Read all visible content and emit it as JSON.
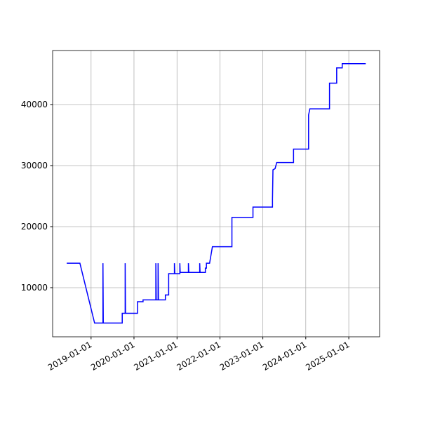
{
  "chart_data": {
    "type": "line",
    "x": [
      "2018-06-08",
      "2018-09-28",
      "2019-01-31",
      "2019-04-12",
      "2019-04-12",
      "2019-04-15",
      "2019-09-23",
      "2019-09-23",
      "2019-10-18",
      "2019-10-18",
      "2019-10-21",
      "2020-01-31",
      "2020-01-31",
      "2020-03-18",
      "2020-03-18",
      "2020-07-05",
      "2020-07-05",
      "2020-07-08",
      "2020-07-24",
      "2020-07-24",
      "2020-07-27",
      "2020-09-24",
      "2020-09-24",
      "2020-10-22",
      "2020-10-22",
      "2020-12-10",
      "2020-12-10",
      "2020-12-13",
      "2021-01-25",
      "2021-01-25",
      "2021-01-28",
      "2021-04-08",
      "2021-04-08",
      "2021-04-11",
      "2021-07-13",
      "2021-07-13",
      "2021-07-16",
      "2021-08-30",
      "2021-08-30",
      "2021-09-08",
      "2021-09-08",
      "2021-10-05",
      "2021-10-29",
      "2022-04-13",
      "2022-04-13",
      "2022-10-09",
      "2022-10-09",
      "2023-03-24",
      "2023-03-24",
      "2023-03-28",
      "2023-04-15",
      "2023-04-29",
      "2023-09-19",
      "2023-09-19",
      "2024-01-25",
      "2024-01-25",
      "2024-02-05",
      "2024-07-21",
      "2024-07-21",
      "2024-09-20",
      "2024-09-20",
      "2024-11-06",
      "2024-11-06",
      "2025-05-25"
    ],
    "series": [
      {
        "color": "#0000ff",
        "values": [
          14000,
          14000,
          4200,
          4200,
          14000,
          4200,
          4200,
          5800,
          5800,
          14000,
          5800,
          5800,
          7700,
          7700,
          8000,
          8000,
          14000,
          8000,
          8000,
          14000,
          8000,
          8000,
          8800,
          8800,
          12300,
          12300,
          14000,
          12300,
          12300,
          14000,
          12500,
          12500,
          14000,
          12500,
          12500,
          14000,
          12500,
          12500,
          13200,
          13200,
          14000,
          14000,
          16700,
          16700,
          21500,
          21500,
          23200,
          23200,
          24500,
          29300,
          29500,
          30500,
          30500,
          32700,
          32700,
          38300,
          39300,
          39300,
          43500,
          43500,
          46000,
          46000,
          46700,
          46700
        ]
      }
    ],
    "xlim": [
      "2018-02-08",
      "2025-09-20"
    ],
    "xticks": [
      "2019-01-01",
      "2020-01-01",
      "2021-01-01",
      "2022-01-01",
      "2023-01-01",
      "2024-01-01",
      "2025-01-01"
    ],
    "ylim": [
      1950,
      48850
    ],
    "yticks": [
      10000,
      20000,
      30000,
      40000
    ],
    "grid": true
  }
}
